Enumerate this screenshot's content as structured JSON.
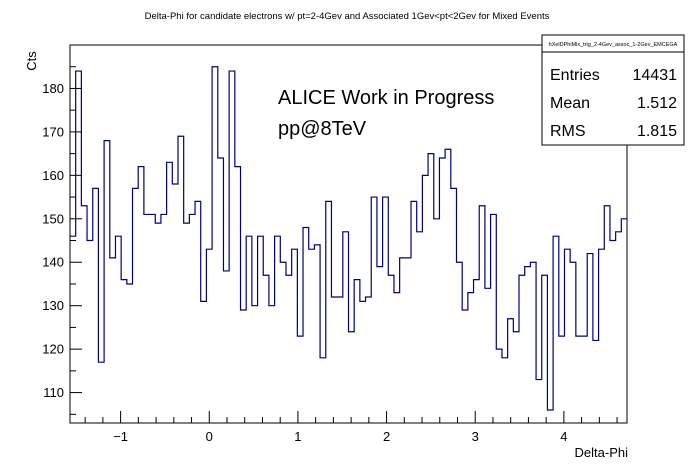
{
  "chart_data": {
    "type": "bar",
    "title": "Delta-Phi for candidate electrons w/ pt=2-4Gev and Associated 1Gev<pt<2Gev for Mixed Events",
    "xlabel": "Delta-Phi",
    "ylabel": "Cts",
    "xlim": [
      -1.571,
      4.712
    ],
    "ylim": [
      103,
      190
    ],
    "x_ticks": [
      -1,
      0,
      1,
      2,
      3,
      4
    ],
    "y_ticks": [
      110,
      120,
      130,
      140,
      150,
      160,
      170,
      180
    ],
    "grid": false,
    "line_color": "#000080",
    "values": [
      146,
      184,
      153,
      145,
      157,
      117,
      168,
      141,
      146,
      136,
      135,
      157,
      162,
      151,
      151,
      149,
      151,
      163,
      158,
      169,
      149,
      151,
      154,
      131,
      143,
      185,
      164,
      138,
      184,
      162,
      129,
      146,
      130,
      146,
      137,
      130,
      146,
      140,
      137,
      143,
      123,
      148,
      143,
      144,
      118,
      154,
      132,
      132,
      147,
      124,
      136,
      131,
      132,
      155,
      139,
      155,
      137,
      133,
      141,
      141,
      154,
      147,
      160,
      165,
      150,
      164,
      166,
      157,
      140,
      129,
      133,
      136,
      153,
      134,
      151,
      120,
      118,
      127,
      124,
      137,
      139,
      140,
      113,
      137,
      106,
      146,
      123,
      143,
      140,
      123,
      123,
      142,
      122,
      143,
      153,
      145,
      147,
      150
    ]
  },
  "stats_box": {
    "name": "hXelDPhiMix_trig_2-4Gev_assoc_1-2Gev_EMCEGA",
    "entries_label": "Entries",
    "entries_value": "14431",
    "mean_label": "Mean",
    "mean_value": "1.512",
    "rms_label": "RMS",
    "rms_value": "1.815"
  },
  "annotation": {
    "line1": "ALICE Work in Progress",
    "line2": "pp@8TeV"
  }
}
